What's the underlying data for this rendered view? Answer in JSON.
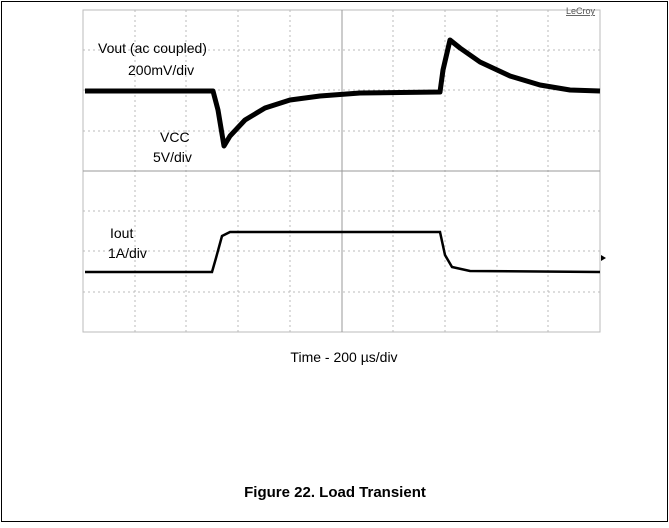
{
  "figure": {
    "brand": "LeCroy",
    "vout_label": "Vout (ac coupled)",
    "vout_scale": "200mV/div",
    "vcc_label": "VCC",
    "vcc_scale": "5V/div",
    "iout_label": "Iout",
    "iout_scale": "1A/div",
    "time_label": "Time - 200 µs/div",
    "caption": "Figure 22. Load Transient"
  }
}
